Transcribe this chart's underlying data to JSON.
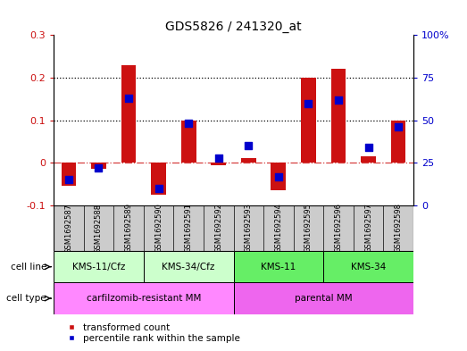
{
  "title": "GDS5826 / 241320_at",
  "samples": [
    "GSM1692587",
    "GSM1692588",
    "GSM1692589",
    "GSM1692590",
    "GSM1692591",
    "GSM1692592",
    "GSM1692593",
    "GSM1692594",
    "GSM1692595",
    "GSM1692596",
    "GSM1692597",
    "GSM1692598"
  ],
  "transformed_count": [
    -0.055,
    -0.015,
    0.23,
    -0.075,
    0.1,
    -0.005,
    0.01,
    -0.065,
    0.2,
    0.22,
    0.015,
    0.1
  ],
  "percentile_rank": [
    0.15,
    0.22,
    0.63,
    0.1,
    0.48,
    0.28,
    0.35,
    0.17,
    0.6,
    0.62,
    0.34,
    0.46
  ],
  "cell_line_groups": [
    {
      "label": "KMS-11/Cfz",
      "start": 0,
      "end": 3,
      "color": "#ccffcc"
    },
    {
      "label": "KMS-34/Cfz",
      "start": 3,
      "end": 6,
      "color": "#ccffcc"
    },
    {
      "label": "KMS-11",
      "start": 6,
      "end": 9,
      "color": "#66ee66"
    },
    {
      "label": "KMS-34",
      "start": 9,
      "end": 12,
      "color": "#66ee66"
    }
  ],
  "cell_type_groups": [
    {
      "label": "carfilzomib-resistant MM",
      "start": 0,
      "end": 6,
      "color": "#ff88ff"
    },
    {
      "label": "parental MM",
      "start": 6,
      "end": 12,
      "color": "#ee66ee"
    }
  ],
  "sample_box_color": "#cccccc",
  "bar_color": "#cc1111",
  "dot_color": "#0000cc",
  "ylim_left": [
    -0.1,
    0.3
  ],
  "ylim_right": [
    0,
    1.0
  ],
  "yticks_left": [
    -0.1,
    0.0,
    0.1,
    0.2,
    0.3
  ],
  "ytick_labels_left": [
    "-0.1",
    "0",
    "0.1",
    "0.2",
    "0.3"
  ],
  "yticks_right": [
    0,
    0.25,
    0.5,
    0.75,
    1.0
  ],
  "ytick_labels_right": [
    "0",
    "25",
    "50",
    "75",
    "100%"
  ],
  "hline_y": [
    0.1,
    0.2
  ],
  "zero_line_y": 0.0,
  "bar_width": 0.5,
  "dot_size": 30,
  "legend_tc": "transformed count",
  "legend_pr": "percentile rank within the sample",
  "cell_line_label": "cell line",
  "cell_type_label": "cell type"
}
